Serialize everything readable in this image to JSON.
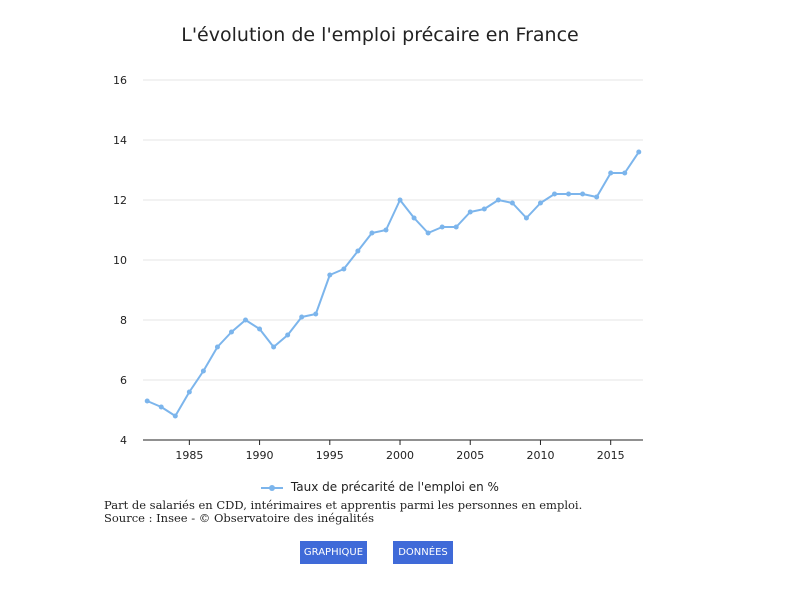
{
  "chart_data": {
    "type": "line",
    "title": "L'évolution de l'emploi précaire en France",
    "xlabel": "",
    "ylabel": "",
    "xlim": [
      1981.7,
      2017.3
    ],
    "ylim": [
      4,
      16
    ],
    "x_ticks": [
      1985,
      1990,
      1995,
      2000,
      2005,
      2010,
      2015
    ],
    "y_ticks": [
      4,
      6,
      8,
      10,
      12,
      14,
      16
    ],
    "grid": true,
    "legend_position": "bottom",
    "series": [
      {
        "name": "Taux de précarité de l'emploi en %",
        "color": "#7cb5ec",
        "x": [
          1982,
          1983,
          1984,
          1985,
          1986,
          1987,
          1988,
          1989,
          1990,
          1991,
          1992,
          1993,
          1994,
          1995,
          1996,
          1997,
          1998,
          1999,
          2000,
          2001,
          2002,
          2003,
          2004,
          2005,
          2006,
          2007,
          2008,
          2009,
          2010,
          2011,
          2012,
          2013,
          2014,
          2015,
          2016,
          2017
        ],
        "values": [
          5.3,
          5.1,
          4.8,
          5.6,
          6.3,
          7.1,
          7.6,
          8.0,
          7.7,
          7.1,
          7.5,
          8.1,
          8.2,
          9.5,
          9.7,
          10.3,
          10.9,
          11.0,
          12.0,
          11.4,
          10.9,
          11.1,
          11.1,
          11.6,
          11.7,
          12.0,
          11.9,
          11.4,
          11.9,
          12.2,
          12.2,
          12.2,
          12.1,
          12.9,
          12.9,
          13.6
        ]
      }
    ]
  },
  "notes": {
    "line1": "Part de salariés en CDD, intérimaires et apprentis parmi les personnes en emploi.",
    "line2": "Source : Insee - © Observatoire des inégalités"
  },
  "buttons": {
    "graph_label": "GRAPHIQUE",
    "data_label": "DONNÉES",
    "color": "#3f6ad8"
  }
}
